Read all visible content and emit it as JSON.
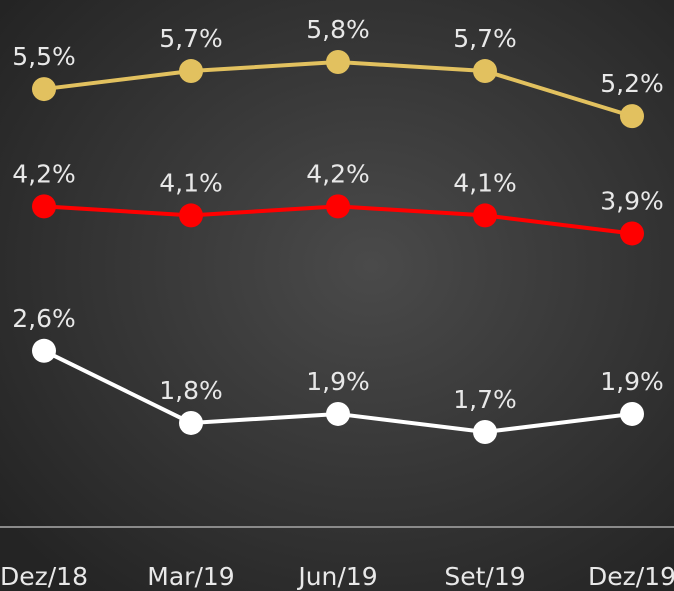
{
  "chart_data": {
    "type": "line",
    "categories": [
      "Dez/18",
      "Mar/19",
      "Jun/19",
      "Set/19",
      "Dez/19"
    ],
    "series": [
      {
        "color": "#e2c15f",
        "values": [
          5.5,
          5.7,
          5.8,
          5.7,
          5.2
        ],
        "value_labels": [
          "5,5%",
          "5,7%",
          "5,8%",
          "5,7%",
          "5,2%"
        ]
      },
      {
        "color": "#ff0000",
        "values": [
          4.2,
          4.1,
          4.2,
          4.1,
          3.9
        ],
        "value_labels": [
          "4,2%",
          "4,1%",
          "4,2%",
          "4,1%",
          "3,9%"
        ]
      },
      {
        "color": "#ffffff",
        "values": [
          2.6,
          1.8,
          1.9,
          1.7,
          1.9
        ],
        "value_labels": [
          "2,6%",
          "1,8%",
          "1,9%",
          "1,7%",
          "1,9%"
        ]
      }
    ]
  }
}
